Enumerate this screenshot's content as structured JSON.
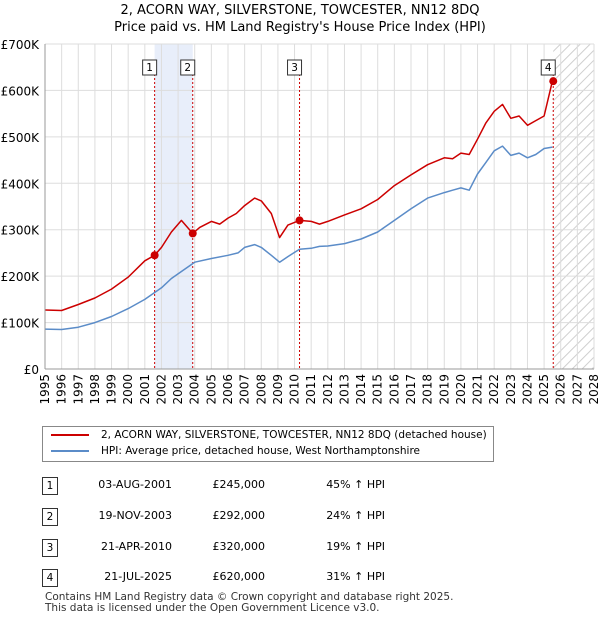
{
  "chart_data": {
    "type": "line",
    "title": "2, ACORN WAY, SILVERSTONE, TOWCESTER, NN12 8DQ",
    "subtitle": "Price paid vs. HM Land Registry's House Price Index (HPI)",
    "xlabel": "",
    "ylabel": "",
    "xlim": [
      1995,
      2028
    ],
    "ylim": [
      0,
      700000
    ],
    "x_ticks": [
      "1995",
      "1996",
      "1997",
      "1998",
      "1999",
      "2000",
      "2001",
      "2002",
      "2003",
      "2004",
      "2005",
      "2006",
      "2007",
      "2008",
      "2009",
      "2010",
      "2011",
      "2012",
      "2013",
      "2014",
      "2015",
      "2016",
      "2017",
      "2018",
      "2019",
      "2020",
      "2021",
      "2022",
      "2023",
      "2024",
      "2025",
      "2026",
      "2027",
      "2028"
    ],
    "y_ticks": [
      {
        "value": 0,
        "label": "£0"
      },
      {
        "value": 100000,
        "label": "£100K"
      },
      {
        "value": 200000,
        "label": "£200K"
      },
      {
        "value": 300000,
        "label": "£300K"
      },
      {
        "value": 400000,
        "label": "£400K"
      },
      {
        "value": 500000,
        "label": "£500K"
      },
      {
        "value": 600000,
        "label": "£600K"
      },
      {
        "value": 700000,
        "label": "£700K"
      }
    ],
    "grid": true,
    "series": [
      {
        "name": "2, ACORN WAY, SILVERSTONE, TOWCESTER, NN12 8DQ (detached house)",
        "color": "#cc0000",
        "points": [
          [
            1995,
            127000
          ],
          [
            1996,
            126000
          ],
          [
            1997,
            139000
          ],
          [
            1998,
            153000
          ],
          [
            1999,
            172000
          ],
          [
            2000,
            198000
          ],
          [
            2001,
            233000
          ],
          [
            2001.59,
            245000
          ],
          [
            2002,
            262000
          ],
          [
            2002.6,
            295000
          ],
          [
            2003.2,
            320000
          ],
          [
            2003.88,
            292000
          ],
          [
            2004.3,
            305000
          ],
          [
            2005,
            318000
          ],
          [
            2005.5,
            312000
          ],
          [
            2006,
            325000
          ],
          [
            2006.5,
            335000
          ],
          [
            2007,
            352000
          ],
          [
            2007.6,
            368000
          ],
          [
            2008,
            362000
          ],
          [
            2008.6,
            335000
          ],
          [
            2009.1,
            283000
          ],
          [
            2009.6,
            310000
          ],
          [
            2010.3,
            320000
          ],
          [
            2011,
            318000
          ],
          [
            2011.5,
            312000
          ],
          [
            2012,
            318000
          ],
          [
            2013,
            332000
          ],
          [
            2014,
            345000
          ],
          [
            2015,
            365000
          ],
          [
            2016,
            395000
          ],
          [
            2017,
            418000
          ],
          [
            2018,
            440000
          ],
          [
            2019,
            455000
          ],
          [
            2019.5,
            453000
          ],
          [
            2020,
            465000
          ],
          [
            2020.5,
            462000
          ],
          [
            2021,
            495000
          ],
          [
            2021.5,
            530000
          ],
          [
            2022,
            555000
          ],
          [
            2022.5,
            570000
          ],
          [
            2023,
            540000
          ],
          [
            2023.5,
            545000
          ],
          [
            2024,
            525000
          ],
          [
            2024.5,
            535000
          ],
          [
            2025,
            545000
          ],
          [
            2025.5,
            620000
          ]
        ]
      },
      {
        "name": "HPI: Average price, detached house, West Northamptonshire",
        "color": "#5b8cc8",
        "points": [
          [
            1995,
            86000
          ],
          [
            1996,
            85000
          ],
          [
            1997,
            90000
          ],
          [
            1998,
            100000
          ],
          [
            1999,
            113000
          ],
          [
            2000,
            130000
          ],
          [
            2001,
            150000
          ],
          [
            2002,
            175000
          ],
          [
            2002.6,
            195000
          ],
          [
            2003.2,
            210000
          ],
          [
            2004,
            230000
          ],
          [
            2005,
            238000
          ],
          [
            2006,
            245000
          ],
          [
            2006.6,
            250000
          ],
          [
            2007,
            262000
          ],
          [
            2007.6,
            268000
          ],
          [
            2008,
            262000
          ],
          [
            2008.6,
            245000
          ],
          [
            2009.1,
            230000
          ],
          [
            2009.6,
            242000
          ],
          [
            2010.3,
            258000
          ],
          [
            2011,
            260000
          ],
          [
            2011.5,
            264000
          ],
          [
            2012,
            265000
          ],
          [
            2013,
            270000
          ],
          [
            2014,
            280000
          ],
          [
            2015,
            295000
          ],
          [
            2016,
            320000
          ],
          [
            2017,
            345000
          ],
          [
            2018,
            368000
          ],
          [
            2019,
            380000
          ],
          [
            2019.5,
            385000
          ],
          [
            2020,
            390000
          ],
          [
            2020.5,
            385000
          ],
          [
            2021,
            420000
          ],
          [
            2021.5,
            445000
          ],
          [
            2022,
            470000
          ],
          [
            2022.5,
            480000
          ],
          [
            2023,
            460000
          ],
          [
            2023.5,
            465000
          ],
          [
            2024,
            455000
          ],
          [
            2024.5,
            462000
          ],
          [
            2025,
            475000
          ],
          [
            2025.5,
            478000
          ]
        ]
      }
    ],
    "transactions": [
      {
        "label": "1",
        "x": 2001.59,
        "y": 245000,
        "date": "03-AUG-2001",
        "price": "£245,000",
        "hpi": "45% ↑ HPI"
      },
      {
        "label": "2",
        "x": 2003.88,
        "y": 292000,
        "date": "19-NOV-2003",
        "price": "£292,000",
        "hpi": "24% ↑ HPI"
      },
      {
        "label": "3",
        "x": 2010.3,
        "y": 320000,
        "date": "21-APR-2010",
        "price": "£320,000",
        "hpi": "19% ↑ HPI"
      },
      {
        "label": "4",
        "x": 2025.55,
        "y": 620000,
        "date": "21-JUL-2025",
        "price": "£620,000",
        "hpi": "31% ↑ HPI"
      }
    ],
    "shaded_periods": [
      [
        2001.59,
        2003.88
      ],
      [
        2010.3,
        2010.3
      ]
    ],
    "future_hatch_from": 2025.55
  },
  "legend": {
    "property": "2, ACORN WAY, SILVERSTONE, TOWCESTER, NN12 8DQ (detached house)",
    "hpi": "HPI: Average price, detached house, West Northamptonshire"
  },
  "footer": {
    "line1": "Contains HM Land Registry data © Crown copyright and database right 2025.",
    "line2": "This data is licensed under the Open Government Licence v3.0."
  }
}
